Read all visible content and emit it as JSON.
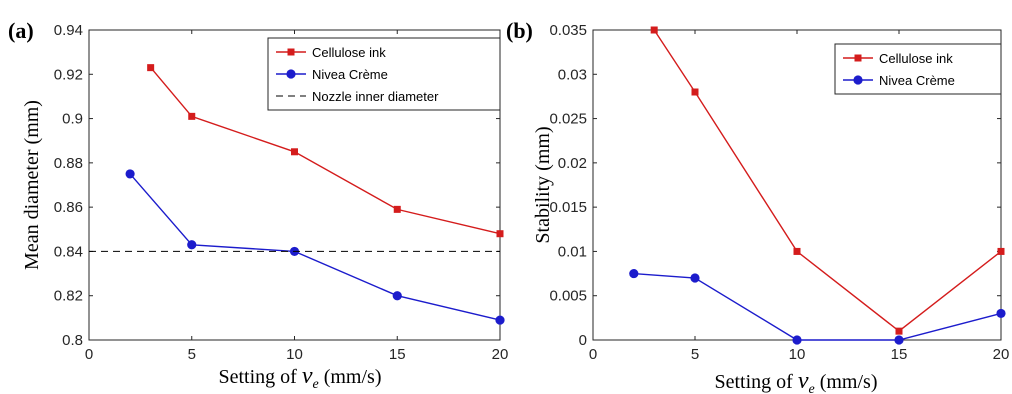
{
  "figure": {
    "colors": {
      "cellulose": "#d41c1c",
      "nivea": "#1c1ccc",
      "reference": "#000000"
    },
    "legend_placement": "top-right"
  },
  "chart_data": [
    {
      "type": "line",
      "panel_label": "(a)",
      "ylabel": "Mean diameter (mm)",
      "xlabel": {
        "prefix": "Setting of",
        "symbol": "v",
        "subscript": "e",
        "unit": "(mm/s)"
      },
      "xlim": [
        0,
        20
      ],
      "ylim": [
        0.8,
        0.94
      ],
      "xticks": [
        "0",
        "5",
        "10",
        "15",
        "20"
      ],
      "yticks": [
        "0.8",
        "0.82",
        "0.84",
        "0.86",
        "0.88",
        "0.9",
        "0.92",
        "0.94"
      ],
      "grid": false,
      "legend": "top-right",
      "series": [
        {
          "name": "Cellulose ink",
          "marker": "square",
          "color": "#d41c1c",
          "x": [
            3,
            5,
            10,
            15,
            20
          ],
          "y": [
            0.923,
            0.901,
            0.885,
            0.859,
            0.848
          ]
        },
        {
          "name": "Nivea Crème",
          "marker": "circle",
          "color": "#1c1ccc",
          "x": [
            2,
            5,
            10,
            15,
            20
          ],
          "y": [
            0.875,
            0.843,
            0.84,
            0.82,
            0.809
          ]
        },
        {
          "name": "Nozzle inner diameter",
          "marker": "none",
          "dashed": true,
          "color": "#000000",
          "x": [
            0,
            20
          ],
          "y": [
            0.84,
            0.84
          ]
        }
      ]
    },
    {
      "type": "line",
      "panel_label": "(b)",
      "ylabel": "Stability (mm)",
      "xlabel": {
        "prefix": "Setting of",
        "symbol": "v",
        "subscript": "e",
        "unit": "(mm/s)"
      },
      "xlim": [
        0,
        20
      ],
      "ylim": [
        0,
        0.035
      ],
      "xticks": [
        "0",
        "5",
        "10",
        "15",
        "20"
      ],
      "yticks": [
        "0",
        "0.005",
        "0.01",
        "0.015",
        "0.02",
        "0.025",
        "0.03",
        "0.035"
      ],
      "grid": false,
      "legend": "top-right",
      "series": [
        {
          "name": "Cellulose ink",
          "marker": "square",
          "color": "#d41c1c",
          "x": [
            3,
            5,
            10,
            15,
            20
          ],
          "y": [
            0.035,
            0.028,
            0.01,
            0.001,
            0.01
          ]
        },
        {
          "name": "Nivea Crème",
          "marker": "circle",
          "color": "#1c1ccc",
          "x": [
            2,
            5,
            10,
            15,
            20
          ],
          "y": [
            0.0075,
            0.007,
            0.0,
            0.0,
            0.003
          ]
        }
      ]
    }
  ]
}
